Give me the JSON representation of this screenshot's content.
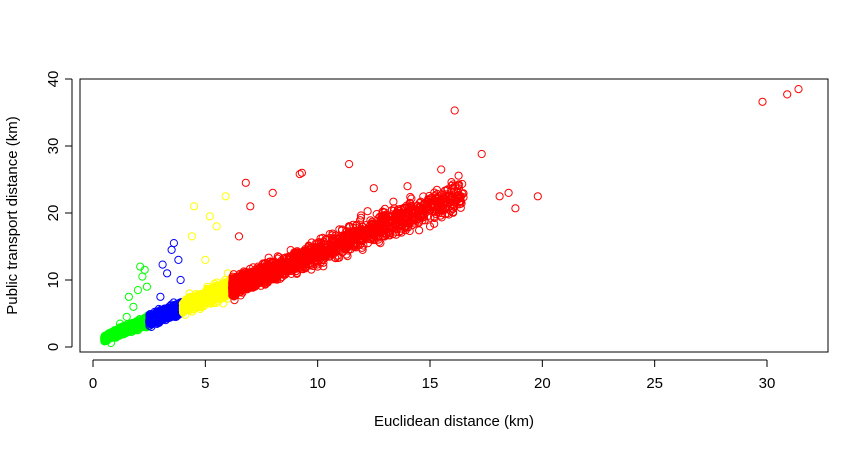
{
  "chart_data": {
    "type": "scatter",
    "title": "",
    "xlabel": "Euclidean distance (km)",
    "ylabel": "Public transport distance (km)",
    "xlim": [
      0,
      32
    ],
    "ylim": [
      0,
      40
    ],
    "x_ticks": [
      0,
      5,
      10,
      15,
      20,
      25,
      30
    ],
    "y_ticks": [
      0,
      10,
      20,
      30,
      40
    ],
    "marker": "open-circle",
    "grid": false,
    "legend": "none",
    "series": [
      {
        "color": "#00ff00",
        "x_range": [
          0.5,
          2.5
        ],
        "description_points": [
          [
            0.6,
            1.2
          ],
          [
            0.8,
            0.6
          ],
          [
            1.0,
            2.0
          ],
          [
            1.2,
            3.5
          ],
          [
            1.5,
            4.5
          ],
          [
            1.8,
            6.0
          ],
          [
            2.0,
            8.5
          ],
          [
            2.1,
            12.0
          ],
          [
            2.3,
            11.5
          ],
          [
            2.4,
            9.0
          ],
          [
            1.6,
            7.5
          ],
          [
            2.2,
            10.5
          ]
        ]
      },
      {
        "color": "#0000ff",
        "x_range": [
          2.5,
          4.0
        ],
        "description_points": [
          [
            2.6,
            3.0
          ],
          [
            2.8,
            5.0
          ],
          [
            3.0,
            7.5
          ],
          [
            3.1,
            12.3
          ],
          [
            3.3,
            11.0
          ],
          [
            3.5,
            14.5
          ],
          [
            3.6,
            15.5
          ],
          [
            3.8,
            13.0
          ],
          [
            3.9,
            10.0
          ],
          [
            3.7,
            4.5
          ]
        ]
      },
      {
        "color": "#ffff00",
        "x_range": [
          4.0,
          6.2
        ],
        "description_points": [
          [
            4.1,
            4.8
          ],
          [
            4.3,
            8.0
          ],
          [
            4.5,
            21.0
          ],
          [
            4.4,
            16.5
          ],
          [
            5.0,
            13.0
          ],
          [
            5.2,
            19.5
          ],
          [
            5.5,
            18.0
          ],
          [
            5.9,
            22.5
          ],
          [
            6.0,
            11.0
          ],
          [
            5.8,
            6.5
          ]
        ]
      },
      {
        "color": "#ff0000",
        "x_range": [
          6.2,
          32.0
        ],
        "description_points": [
          [
            6.3,
            7.0
          ],
          [
            6.5,
            16.5
          ],
          [
            6.8,
            24.5
          ],
          [
            7.0,
            21.0
          ],
          [
            8.0,
            23.0
          ],
          [
            9.2,
            25.8
          ],
          [
            9.3,
            26.0
          ],
          [
            11.4,
            27.3
          ],
          [
            12.5,
            23.7
          ],
          [
            14.0,
            24.0
          ],
          [
            15.5,
            26.5
          ],
          [
            16.1,
            35.3
          ],
          [
            17.3,
            28.8
          ],
          [
            18.1,
            22.5
          ],
          [
            18.5,
            23.0
          ],
          [
            18.8,
            20.7
          ],
          [
            19.8,
            22.5
          ],
          [
            15.0,
            18.0
          ],
          [
            12.0,
            14.5
          ],
          [
            10.0,
            12.0
          ],
          [
            29.8,
            36.6
          ],
          [
            30.9,
            37.7
          ],
          [
            31.4,
            38.5
          ]
        ]
      }
    ]
  }
}
